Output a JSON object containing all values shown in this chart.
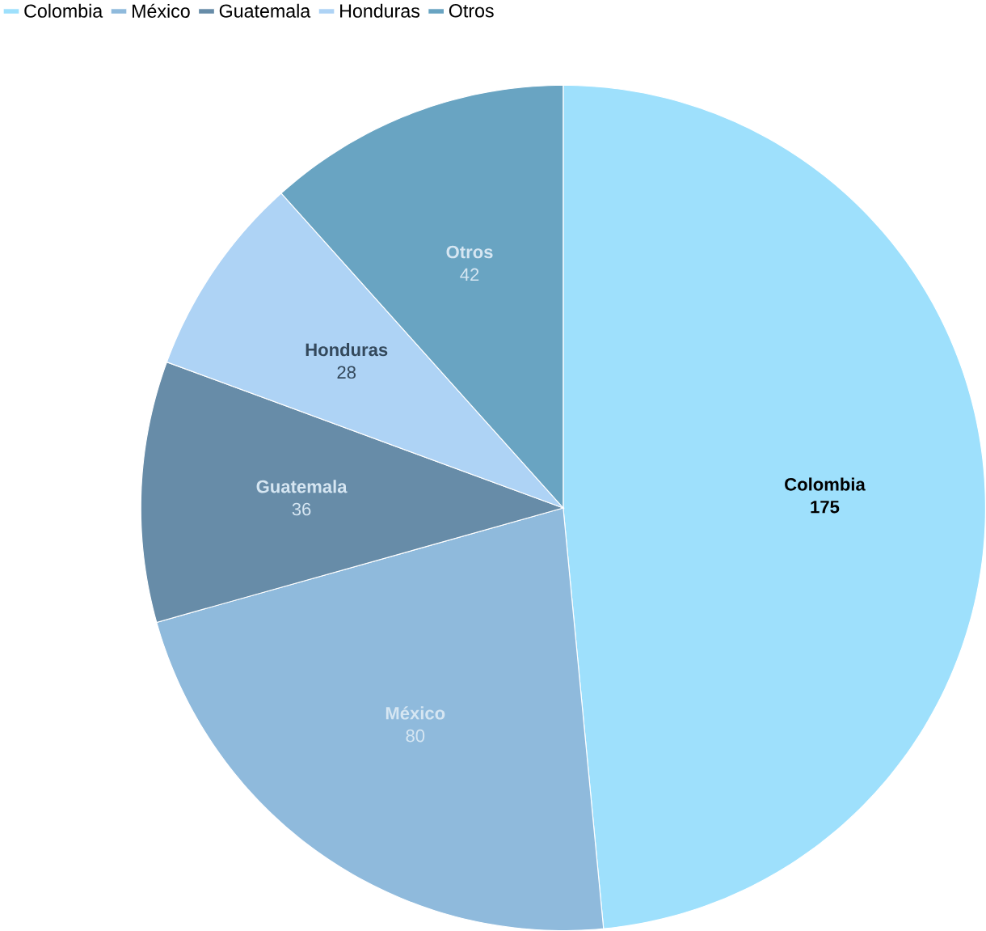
{
  "chart_data": {
    "type": "pie",
    "categories": [
      "Colombia",
      "México",
      "Guatemala",
      "Honduras",
      "Otros"
    ],
    "values": [
      175,
      80,
      36,
      28,
      42
    ],
    "colors": [
      "#9ee0fc",
      "#8fbadc",
      "#678ca8",
      "#aed3f5",
      "#69a4c2"
    ],
    "data_labels": true,
    "legend": "top left"
  }
}
